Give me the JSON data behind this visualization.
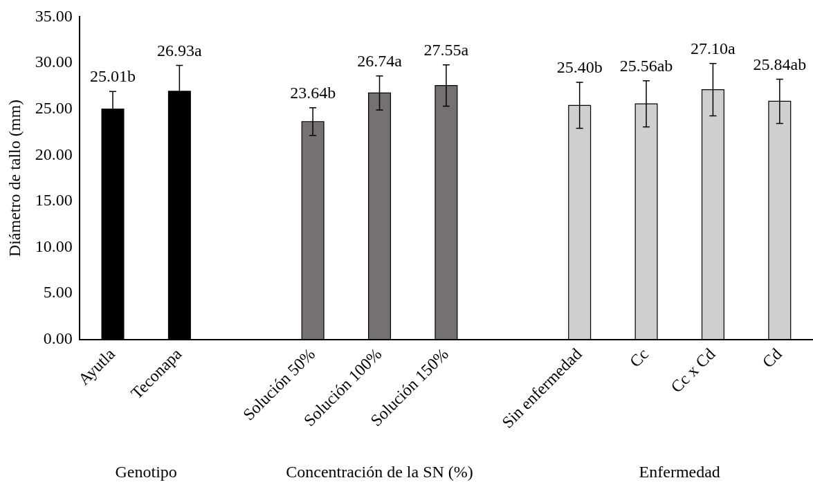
{
  "chart_data": {
    "type": "bar",
    "ylabel": "Diámetro de tallo (mm)",
    "categories": [
      "Ayutla",
      "Teconapa",
      null,
      "Solución 50%",
      "Solución 100%",
      "Solución 150%",
      null,
      "Sin enfermedad",
      "Cc",
      "Cc x Cd",
      "Cd"
    ],
    "series": [
      {
        "color": "#000000",
        "values": [
          25.01,
          26.93,
          null,
          null,
          null,
          null,
          null,
          null,
          null,
          null,
          null
        ],
        "errors": [
          1.9,
          2.8,
          null,
          null,
          null,
          null,
          null,
          null,
          null,
          null,
          null
        ],
        "value_labels": [
          "25.01b",
          "26.93a",
          null,
          null,
          null,
          null,
          null,
          null,
          null,
          null,
          null
        ]
      },
      {
        "color": "#757171",
        "values": [
          null,
          null,
          null,
          23.64,
          26.74,
          27.55,
          null,
          null,
          null,
          null,
          null
        ],
        "errors": [
          null,
          null,
          null,
          1.5,
          1.85,
          2.25,
          null,
          null,
          null,
          null,
          null
        ],
        "value_labels": [
          null,
          null,
          null,
          "23.64b",
          "26.74a",
          "27.55a",
          null,
          null,
          null,
          null,
          null
        ]
      },
      {
        "color": "#d0cece",
        "values": [
          null,
          null,
          null,
          null,
          null,
          null,
          null,
          25.4,
          25.56,
          27.1,
          25.84
        ],
        "errors": [
          null,
          null,
          null,
          null,
          null,
          null,
          null,
          2.5,
          2.5,
          2.85,
          2.4
        ],
        "value_labels": [
          null,
          null,
          null,
          null,
          null,
          null,
          null,
          "25.40b",
          "25.56ab",
          "27.10a",
          "25.84ab"
        ]
      }
    ],
    "ylim": [
      0,
      35
    ],
    "yticks": [
      {
        "value": 0,
        "label": "0.00"
      },
      {
        "value": 5,
        "label": "5.00"
      },
      {
        "value": 10,
        "label": "10.00"
      },
      {
        "value": 15,
        "label": "15.00"
      },
      {
        "value": 20,
        "label": "20.00"
      },
      {
        "value": 25,
        "label": "25.00"
      },
      {
        "value": 30,
        "label": "30.00"
      },
      {
        "value": 35,
        "label": "35.00"
      }
    ],
    "grid": false,
    "legend": false,
    "annotations": [
      "Genotipo",
      "Concentración de la SN (%)",
      "Enfermedad"
    ]
  }
}
